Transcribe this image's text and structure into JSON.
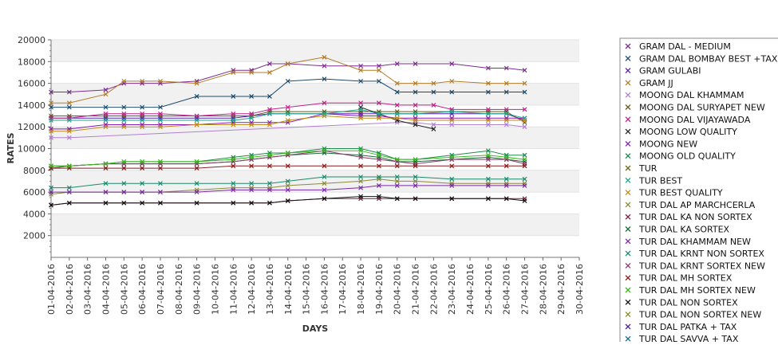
{
  "chart_data": {
    "type": "line",
    "xlabel": "DAYS",
    "ylabel": "RATES",
    "ylim": [
      0,
      20000
    ],
    "yticks": [
      2000,
      4000,
      6000,
      8000,
      10000,
      12000,
      14000,
      16000,
      18000,
      20000
    ],
    "categories": [
      "01-04-2016",
      "02-04-2016",
      "03-04-2016",
      "04-04-2016",
      "05-04-2016",
      "06-04-2016",
      "07-04-2016",
      "08-04-2016",
      "09-04-2016",
      "10-04-2016",
      "11-04-2016",
      "12-04-2016",
      "13-04-2016",
      "14-04-2016",
      "15-04-2016",
      "16-04-2016",
      "17-04-2016",
      "18-04-2016",
      "19-04-2016",
      "20-04-2016",
      "21-04-2016",
      "22-04-2016",
      "23-04-2016",
      "24-04-2016",
      "25-04-2016",
      "26-04-2016",
      "27-04-2016",
      "28-04-2016",
      "29-04-2016",
      "30-04-2016"
    ],
    "grid": "alternating horizontal bands",
    "legend_position": "right",
    "series": [
      {
        "name": "GRAM DAL - MEDIUM",
        "color": "#7b2d8e",
        "values": [
          15200,
          15200,
          null,
          15400,
          16000,
          16000,
          16000,
          null,
          16200,
          null,
          17200,
          17200,
          17800,
          17800,
          null,
          17600,
          null,
          17600,
          17600,
          17800,
          17800,
          null,
          17800,
          null,
          17400,
          17400,
          17200,
          null,
          null,
          null
        ]
      },
      {
        "name": "GRAM DAL BOMBAY BEST +TAX",
        "color": "#1a4a6b",
        "values": [
          13800,
          13800,
          null,
          13800,
          13800,
          13800,
          13800,
          null,
          14800,
          null,
          14800,
          14800,
          14800,
          16200,
          null,
          16400,
          null,
          16200,
          16200,
          15200,
          15200,
          15200,
          15200,
          null,
          15200,
          15200,
          15200,
          null,
          null,
          null
        ]
      },
      {
        "name": "GRAM GULABI",
        "color": "#5a1ab8",
        "values": [
          12800,
          12800,
          null,
          12800,
          12800,
          12800,
          12800,
          null,
          12800,
          null,
          12800,
          13000,
          13200,
          13200,
          null,
          13200,
          null,
          13200,
          13200,
          13200,
          13200,
          null,
          13200,
          null,
          13200,
          13200,
          12600,
          null,
          null,
          null
        ]
      },
      {
        "name": "GRAM JJ",
        "color": "#b07c2a",
        "values": [
          14200,
          14200,
          null,
          15000,
          16200,
          16200,
          16200,
          null,
          16000,
          null,
          17000,
          17000,
          17000,
          17800,
          null,
          18400,
          null,
          17200,
          17200,
          16000,
          16000,
          16000,
          16200,
          null,
          16000,
          16000,
          16000,
          null,
          null,
          null
        ]
      },
      {
        "name": "MOONG DAL KHAMMAM",
        "color": "#b080d0",
        "values": [
          11000,
          11000,
          null,
          null,
          null,
          null,
          null,
          null,
          null,
          null,
          null,
          null,
          null,
          null,
          null,
          null,
          null,
          null,
          null,
          12400,
          12400,
          12200,
          12200,
          null,
          12200,
          12200,
          12000,
          null,
          null,
          null
        ]
      },
      {
        "name": "MOONG DAL SURYAPET NEW",
        "color": "#6b5a1a",
        "values": [
          13000,
          13000,
          null,
          13000,
          13000,
          13000,
          13000,
          null,
          13000,
          null,
          13000,
          13000,
          13400,
          13400,
          null,
          13400,
          null,
          13400,
          13400,
          13400,
          13400,
          null,
          13400,
          null,
          13400,
          13400,
          12400,
          null,
          null,
          null
        ]
      },
      {
        "name": "MOONG DAL VIJAYAWADA",
        "color": "#c0208a",
        "values": [
          12800,
          12800,
          null,
          13200,
          13200,
          13200,
          13200,
          null,
          13000,
          null,
          13200,
          13200,
          13600,
          13800,
          null,
          14200,
          null,
          14200,
          14200,
          14000,
          14000,
          14000,
          13600,
          null,
          13600,
          13600,
          13600,
          null,
          null,
          null
        ]
      },
      {
        "name": "MOONG LOW QUALITY",
        "color": "#222222",
        "values": [
          null,
          null,
          null,
          null,
          null,
          null,
          null,
          null,
          null,
          null,
          null,
          null,
          null,
          null,
          null,
          null,
          null,
          13800,
          13200,
          12600,
          12200,
          11800,
          null,
          null,
          null,
          null,
          null,
          null,
          null,
          null
        ]
      },
      {
        "name": "MOONG NEW",
        "color": "#8a1ab8",
        "values": [
          11800,
          11800,
          null,
          12200,
          12200,
          12200,
          12200,
          null,
          12200,
          null,
          12400,
          12400,
          12400,
          12400,
          null,
          13200,
          null,
          13000,
          13000,
          12800,
          12800,
          null,
          12800,
          null,
          12800,
          12800,
          12800,
          null,
          null,
          null
        ]
      },
      {
        "name": "MOONG OLD QUALITY",
        "color": "#1a8a4a",
        "values": [
          8400,
          8400,
          null,
          8600,
          8800,
          8800,
          8800,
          null,
          8800,
          null,
          9200,
          9400,
          9600,
          9600,
          null,
          10000,
          null,
          10000,
          9600,
          9000,
          9000,
          null,
          9400,
          null,
          9800,
          9400,
          9400,
          null,
          null,
          null
        ]
      },
      {
        "name": "TUR",
        "color": "#6b6b1a",
        "values": [
          null,
          null,
          null,
          null,
          null,
          null,
          null,
          null,
          null,
          null,
          null,
          null,
          null,
          null,
          null,
          null,
          null,
          null,
          null,
          null,
          null,
          null,
          null,
          null,
          null,
          null,
          null,
          null,
          null,
          null
        ]
      },
      {
        "name": "TUR BEST",
        "color": "#1aa88a",
        "values": [
          12600,
          12600,
          null,
          12600,
          12600,
          12600,
          12600,
          null,
          12600,
          null,
          12600,
          12800,
          13200,
          13200,
          null,
          13200,
          null,
          13600,
          13200,
          13200,
          13200,
          null,
          13400,
          null,
          13200,
          13200,
          12800,
          null,
          null,
          null
        ]
      },
      {
        "name": "TUR BEST QUALITY",
        "color": "#c08a1a",
        "values": [
          11600,
          11600,
          null,
          12000,
          12000,
          12000,
          12000,
          null,
          12200,
          null,
          12200,
          12200,
          12200,
          12600,
          null,
          13000,
          null,
          12800,
          12800,
          12800,
          12600,
          null,
          12600,
          null,
          12600,
          12600,
          12600,
          null,
          null,
          null
        ]
      },
      {
        "name": "TUR DAL AP MARCHCERLA",
        "color": "#8a8a3a",
        "values": [
          5800,
          6000,
          null,
          6000,
          6000,
          6000,
          6000,
          null,
          6200,
          null,
          6400,
          6400,
          6400,
          6600,
          null,
          6800,
          null,
          7000,
          7200,
          7000,
          7000,
          null,
          6800,
          null,
          6800,
          6800,
          6800,
          null,
          null,
          null
        ]
      },
      {
        "name": "TUR DAL KA NON SORTEX",
        "color": "#7a1a3a",
        "values": [
          4800,
          5000,
          null,
          5000,
          5000,
          5000,
          5000,
          null,
          5000,
          null,
          5000,
          5000,
          5000,
          5200,
          null,
          5400,
          null,
          5400,
          5400,
          5400,
          5400,
          null,
          5400,
          null,
          5400,
          5400,
          5400,
          null,
          null,
          null
        ]
      },
      {
        "name": "TUR DAL KA SORTEX",
        "color": "#1a6b3a",
        "values": [
          8200,
          8400,
          null,
          8600,
          8600,
          8600,
          8600,
          null,
          8600,
          null,
          8800,
          9000,
          9200,
          9400,
          null,
          9600,
          null,
          9400,
          9200,
          8800,
          8800,
          null,
          9000,
          null,
          9200,
          9000,
          8800,
          null,
          null,
          null
        ]
      },
      {
        "name": "TUR DAL KHAMMAM NEW",
        "color": "#7a2aa8",
        "values": [
          6000,
          6000,
          null,
          6000,
          6000,
          6000,
          6000,
          null,
          6000,
          null,
          6200,
          6200,
          6200,
          6200,
          null,
          6200,
          null,
          6400,
          6600,
          6600,
          6600,
          null,
          6600,
          null,
          6600,
          6600,
          6600,
          null,
          null,
          null
        ]
      },
      {
        "name": "TUR DAL KRNT NON SORTEX",
        "color": "#1a8a6b",
        "values": [
          6400,
          6400,
          null,
          6800,
          6800,
          6800,
          6800,
          null,
          6800,
          null,
          6800,
          6800,
          6800,
          7000,
          null,
          7400,
          null,
          7400,
          7400,
          7400,
          7400,
          null,
          7200,
          null,
          7200,
          7200,
          7200,
          null,
          null,
          null
        ]
      },
      {
        "name": "TUR DAL KRNT SORTEX NEW",
        "color": "#8a3a6b",
        "values": [
          8200,
          8400,
          null,
          8600,
          8600,
          8600,
          8600,
          null,
          8600,
          null,
          8800,
          9000,
          9200,
          9400,
          null,
          9800,
          null,
          9200,
          9000,
          8800,
          8600,
          null,
          9000,
          null,
          9000,
          9000,
          8600,
          null,
          null,
          null
        ]
      },
      {
        "name": "TUR DAL MH SORTEX",
        "color": "#8a1a1a",
        "values": [
          8200,
          8200,
          null,
          8200,
          8200,
          8200,
          8200,
          null,
          8200,
          null,
          8400,
          8400,
          8400,
          8400,
          null,
          8400,
          null,
          8400,
          8400,
          8400,
          8400,
          null,
          8400,
          null,
          8400,
          8400,
          8400,
          null,
          null,
          null
        ]
      },
      {
        "name": "TUR DAL MH SORTEX NEW",
        "color": "#3ab81a",
        "values": [
          8400,
          8400,
          null,
          8600,
          8800,
          8800,
          8800,
          null,
          8800,
          null,
          9000,
          9200,
          9400,
          9600,
          null,
          9800,
          null,
          9800,
          9400,
          9000,
          9000,
          null,
          9200,
          null,
          9400,
          9200,
          9000,
          null,
          null,
          null
        ]
      },
      {
        "name": "TUR DAL NON SORTEX",
        "color": "#111111",
        "values": [
          4800,
          5000,
          null,
          5000,
          5000,
          5000,
          5000,
          null,
          5000,
          null,
          5000,
          5000,
          5000,
          5200,
          null,
          5400,
          null,
          5600,
          5600,
          5400,
          5400,
          null,
          5400,
          null,
          5400,
          5400,
          5200,
          null,
          null,
          null
        ]
      },
      {
        "name": "TUR DAL NON SORTEX NEW",
        "color": "#8a8a1a",
        "values": [
          null,
          null,
          null,
          null,
          null,
          null,
          null,
          null,
          null,
          null,
          null,
          null,
          null,
          null,
          null,
          null,
          null,
          null,
          null,
          null,
          null,
          null,
          null,
          null,
          null,
          null,
          null,
          null,
          null,
          null
        ]
      },
      {
        "name": "TUR DAL PATKA + TAX",
        "color": "#4a1a8a",
        "values": [
          null,
          null,
          null,
          null,
          null,
          null,
          null,
          null,
          null,
          null,
          null,
          null,
          null,
          null,
          null,
          null,
          null,
          null,
          null,
          null,
          null,
          null,
          null,
          null,
          null,
          null,
          null,
          null,
          null,
          null
        ]
      },
      {
        "name": "TUR DAL SAVVA + TAX",
        "color": "#1a6b8a",
        "values": [
          null,
          null,
          null,
          null,
          null,
          null,
          null,
          null,
          null,
          null,
          null,
          null,
          null,
          null,
          null,
          null,
          null,
          null,
          null,
          null,
          null,
          null,
          null,
          null,
          null,
          null,
          null,
          null,
          null,
          null
        ]
      }
    ]
  }
}
